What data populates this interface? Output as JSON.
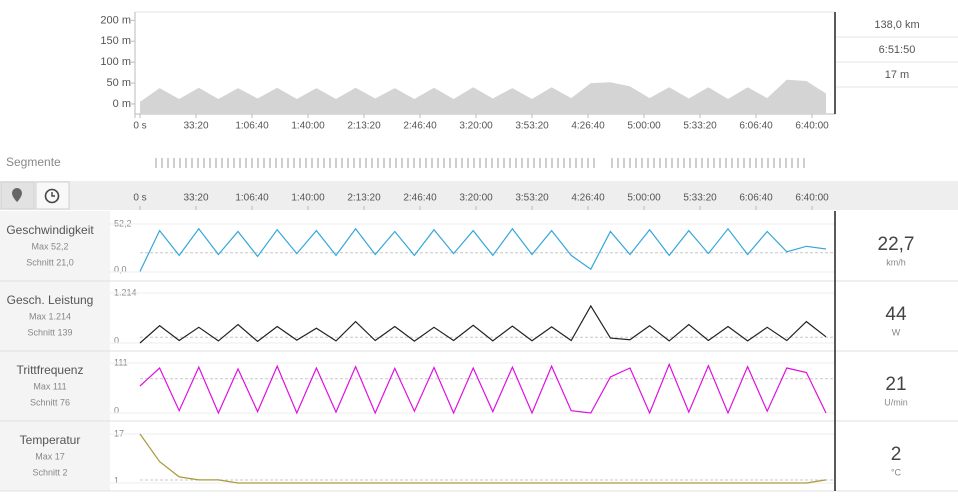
{
  "summary": [
    "138,0 km",
    "6:51:50",
    "17 m"
  ],
  "segments_label": "Segmente",
  "metrics": [
    {
      "name": "Geschwindigkeit",
      "max": "Max 52,2",
      "avg": "Schnitt 21,0",
      "current": "22,7",
      "unit": "km/h"
    },
    {
      "name": "Gesch. Leistung",
      "max": "Max 1.214",
      "avg": "Schnitt 139",
      "current": "44",
      "unit": "W"
    },
    {
      "name": "Trittfrequenz",
      "max": "Max 111",
      "avg": "Schnitt 76",
      "current": "21",
      "unit": "U/min"
    },
    {
      "name": "Temperatur",
      "max": "Max 17",
      "avg": "Schnitt 2",
      "current": "2",
      "unit": "°C"
    }
  ],
  "chart_data": [
    {
      "type": "area",
      "color": "#d4d4d4",
      "x": [
        0,
        700,
        1400,
        2100,
        2800,
        3500,
        4200,
        4900,
        5600,
        6300,
        7000,
        7700,
        8400,
        9100,
        9800,
        10500,
        11200,
        11900,
        12600,
        13300,
        14000,
        14700,
        15400,
        16100,
        16800,
        17500,
        18200,
        18900,
        19600,
        20300,
        21000,
        21700,
        22400,
        23100,
        23800,
        24500
      ],
      "values": [
        5,
        38,
        12,
        39,
        12,
        38,
        13,
        39,
        12,
        38,
        12,
        39,
        13,
        38,
        12,
        39,
        12,
        40,
        13,
        38,
        12,
        40,
        14,
        50,
        52,
        42,
        14,
        40,
        13,
        40,
        12,
        40,
        14,
        58,
        55,
        25
      ],
      "xlim": [
        0,
        24820
      ],
      "ylim": [
        -24,
        220
      ],
      "yticks": [
        {
          "value": 0,
          "label": "0 m"
        },
        {
          "value": 50,
          "label": "50 m"
        },
        {
          "value": 100,
          "label": "100 m"
        },
        {
          "value": 150,
          "label": "150 m"
        },
        {
          "value": 200,
          "label": "200 m"
        }
      ],
      "xticks": [
        {
          "value": 0,
          "label": "0 s"
        },
        {
          "value": 2000,
          "label": "33:20"
        },
        {
          "value": 4000,
          "label": "1:06:40"
        },
        {
          "value": 6000,
          "label": "1:40:00"
        },
        {
          "value": 8000,
          "label": "2:13:20"
        },
        {
          "value": 10000,
          "label": "2:46:40"
        },
        {
          "value": 12000,
          "label": "3:20:00"
        },
        {
          "value": 14000,
          "label": "3:53:20"
        },
        {
          "value": 16000,
          "label": "4:26:40"
        },
        {
          "value": 18000,
          "label": "5:00:00"
        },
        {
          "value": 20000,
          "label": "5:33:20"
        },
        {
          "value": 22000,
          "label": "6:06:40"
        },
        {
          "value": 24000,
          "label": "6:40:00"
        }
      ]
    },
    {
      "type": "line",
      "color": "#35a7db",
      "average": 21.0,
      "x": [
        0,
        700,
        1400,
        2100,
        2800,
        3500,
        4200,
        4900,
        5600,
        6300,
        7000,
        7700,
        8400,
        9100,
        9800,
        10500,
        11200,
        11900,
        12600,
        13300,
        14000,
        14700,
        15400,
        16100,
        16800,
        17500,
        18200,
        18900,
        19600,
        20300,
        21000,
        21700,
        22400,
        23100,
        23800,
        24500
      ],
      "values": [
        0.5,
        45,
        18,
        47,
        19,
        44,
        17,
        46,
        20,
        45,
        18,
        47,
        19,
        44,
        18,
        46,
        20,
        45,
        18,
        47,
        19,
        45,
        18,
        3,
        44,
        19,
        46,
        18,
        45,
        20,
        47,
        19,
        44,
        22,
        28,
        25
      ],
      "xlim": [
        0,
        24820
      ],
      "ylim": [
        0,
        52.2
      ],
      "yticks": [
        {
          "value": 0,
          "label": "0,0"
        },
        {
          "value": 52.2,
          "label": "52,2"
        }
      ],
      "xticks": [
        {
          "value": 0,
          "label": "0 s"
        },
        {
          "value": 2000,
          "label": "33:20"
        },
        {
          "value": 4000,
          "label": "1:06:40"
        },
        {
          "value": 6000,
          "label": "1:40:00"
        },
        {
          "value": 8000,
          "label": "2:13:20"
        },
        {
          "value": 10000,
          "label": "2:46:40"
        },
        {
          "value": 12000,
          "label": "3:20:00"
        },
        {
          "value": 14000,
          "label": "3:53:20"
        },
        {
          "value": 16000,
          "label": "4:26:40"
        },
        {
          "value": 18000,
          "label": "5:00:00"
        },
        {
          "value": 20000,
          "label": "5:33:20"
        },
        {
          "value": 22000,
          "label": "6:06:40"
        },
        {
          "value": 24000,
          "label": "6:40:00"
        }
      ]
    },
    {
      "type": "line",
      "color": "#222222",
      "average": 139,
      "x": [
        0,
        700,
        1400,
        2100,
        2800,
        3500,
        4200,
        4900,
        5600,
        6300,
        7000,
        7700,
        8400,
        9100,
        9800,
        10500,
        11200,
        11900,
        12600,
        13300,
        14000,
        14700,
        15400,
        16100,
        16800,
        17500,
        18200,
        18900,
        19600,
        20300,
        21000,
        21700,
        22400,
        23100,
        23800,
        24500
      ],
      "values": [
        0,
        420,
        60,
        380,
        50,
        450,
        40,
        400,
        70,
        360,
        50,
        520,
        60,
        400,
        45,
        380,
        60,
        430,
        50,
        410,
        55,
        390,
        60,
        900,
        120,
        80,
        420,
        50,
        450,
        60,
        400,
        50,
        380,
        60,
        520,
        150
      ],
      "xlim": [
        0,
        24820
      ],
      "ylim": [
        0,
        1214
      ],
      "yticks": [
        0,
        {
          "value": 1214,
          "label": "1.214"
        }
      ]
    },
    {
      "type": "line",
      "color": "#e010e0",
      "average": 76,
      "x": [
        0,
        700,
        1400,
        2100,
        2800,
        3500,
        4200,
        4900,
        5600,
        6300,
        7000,
        7700,
        8400,
        9100,
        9800,
        10500,
        11200,
        11900,
        12600,
        13300,
        14000,
        14700,
        15400,
        16100,
        16800,
        17500,
        18200,
        18900,
        19600,
        20300,
        21000,
        21700,
        22400,
        23100,
        23800,
        24500
      ],
      "values": [
        60,
        100,
        5,
        102,
        0,
        98,
        3,
        104,
        0,
        100,
        2,
        103,
        0,
        99,
        4,
        101,
        0,
        100,
        3,
        102,
        0,
        104,
        5,
        0,
        80,
        100,
        0,
        108,
        2,
        105,
        0,
        103,
        4,
        100,
        90,
        0
      ],
      "xlim": [
        0,
        24820
      ],
      "ylim": [
        0,
        111
      ],
      "yticks": [
        0,
        111
      ]
    },
    {
      "type": "line",
      "color": "#a89a3a",
      "average": 2,
      "x": [
        0,
        700,
        1400,
        2100,
        2800,
        3500,
        4200,
        4900,
        5600,
        6300,
        7000,
        7700,
        8400,
        9100,
        9800,
        10500,
        11200,
        11900,
        12600,
        13300,
        14000,
        14700,
        15400,
        16100,
        16800,
        17500,
        18200,
        18900,
        19600,
        20300,
        21000,
        21700,
        22400,
        23100,
        23800,
        24500
      ],
      "values": [
        17,
        8,
        3,
        2,
        2,
        1,
        1,
        1,
        1,
        1,
        1,
        1,
        1,
        1,
        1,
        1,
        1,
        1,
        1,
        1,
        1,
        1,
        1,
        1,
        1,
        1,
        1,
        1,
        1,
        1,
        1,
        1,
        1,
        1,
        1,
        2
      ],
      "xlim": [
        0,
        24820
      ],
      "ylim": [
        1,
        17
      ],
      "yticks": [
        1,
        17
      ]
    }
  ]
}
